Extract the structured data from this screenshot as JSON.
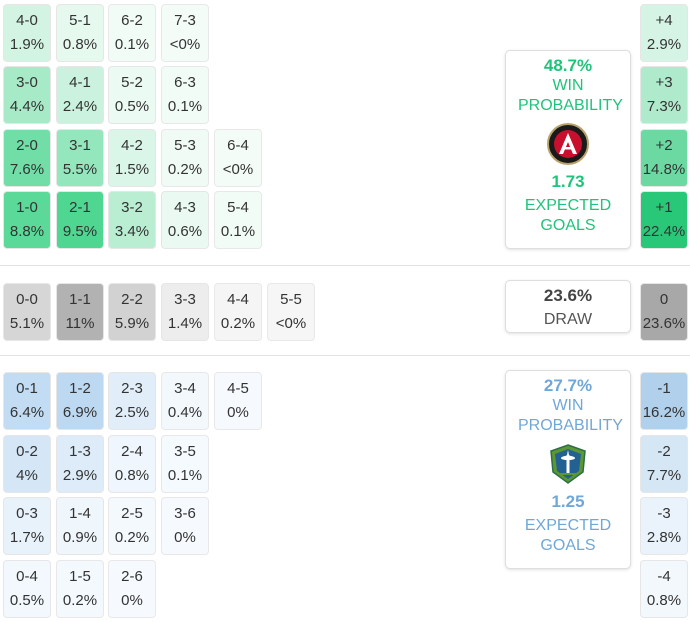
{
  "colors": {
    "home_accent": "#1fc47a",
    "away_accent": "#6fa8d8",
    "draw_text": "#444444"
  },
  "home": {
    "win_prob": "48.7%",
    "win_label": "WIN PROBABILITY",
    "logo": "atlanta-united-crest-icon",
    "xg": "1.73",
    "xg_label": "EXPECTED GOALS"
  },
  "draw": {
    "prob": "23.6%",
    "label": "DRAW"
  },
  "away": {
    "win_prob": "27.7%",
    "win_label": "WIN PROBABILITY",
    "logo": "seattle-sounders-crest-icon",
    "xg": "1.25",
    "xg_label": "EXPECTED GOALS"
  },
  "home_scores": [
    [
      {
        "s": "4-0",
        "p": "1.9%"
      },
      {
        "s": "5-1",
        "p": "0.8%"
      },
      {
        "s": "6-2",
        "p": "0.1%"
      },
      {
        "s": "7-3",
        "p": "<0%"
      }
    ],
    [
      {
        "s": "3-0",
        "p": "4.4%"
      },
      {
        "s": "4-1",
        "p": "2.4%"
      },
      {
        "s": "5-2",
        "p": "0.5%"
      },
      {
        "s": "6-3",
        "p": "0.1%"
      }
    ],
    [
      {
        "s": "2-0",
        "p": "7.6%"
      },
      {
        "s": "3-1",
        "p": "5.5%"
      },
      {
        "s": "4-2",
        "p": "1.5%"
      },
      {
        "s": "5-3",
        "p": "0.2%"
      },
      {
        "s": "6-4",
        "p": "<0%"
      }
    ],
    [
      {
        "s": "1-0",
        "p": "8.8%"
      },
      {
        "s": "2-1",
        "p": "9.5%"
      },
      {
        "s": "3-2",
        "p": "3.4%"
      },
      {
        "s": "4-3",
        "p": "0.6%"
      },
      {
        "s": "5-4",
        "p": "0.1%"
      }
    ]
  ],
  "draw_scores": [
    [
      {
        "s": "0-0",
        "p": "5.1%"
      },
      {
        "s": "1-1",
        "p": "11%"
      },
      {
        "s": "2-2",
        "p": "5.9%"
      },
      {
        "s": "3-3",
        "p": "1.4%"
      },
      {
        "s": "4-4",
        "p": "0.2%"
      },
      {
        "s": "5-5",
        "p": "<0%"
      }
    ]
  ],
  "away_scores": [
    [
      {
        "s": "0-1",
        "p": "6.4%"
      },
      {
        "s": "1-2",
        "p": "6.9%"
      },
      {
        "s": "2-3",
        "p": "2.5%"
      },
      {
        "s": "3-4",
        "p": "0.4%"
      },
      {
        "s": "4-5",
        "p": "0%"
      }
    ],
    [
      {
        "s": "0-2",
        "p": "4%"
      },
      {
        "s": "1-3",
        "p": "2.9%"
      },
      {
        "s": "2-4",
        "p": "0.8%"
      },
      {
        "s": "3-5",
        "p": "0.1%"
      }
    ],
    [
      {
        "s": "0-3",
        "p": "1.7%"
      },
      {
        "s": "1-4",
        "p": "0.9%"
      },
      {
        "s": "2-5",
        "p": "0.2%"
      },
      {
        "s": "3-6",
        "p": "0%"
      }
    ],
    [
      {
        "s": "0-4",
        "p": "0.5%"
      },
      {
        "s": "1-5",
        "p": "0.2%"
      },
      {
        "s": "2-6",
        "p": "0%"
      }
    ]
  ],
  "home_margins": [
    {
      "m": "+4",
      "p": "2.9%"
    },
    {
      "m": "+3",
      "p": "7.3%"
    },
    {
      "m": "+2",
      "p": "14.8%"
    },
    {
      "m": "+1",
      "p": "22.4%"
    }
  ],
  "draw_margins": [
    {
      "m": "0",
      "p": "23.6%"
    }
  ],
  "away_margins": [
    {
      "m": "-1",
      "p": "16.2%"
    },
    {
      "m": "-2",
      "p": "7.7%"
    },
    {
      "m": "-3",
      "p": "2.8%"
    },
    {
      "m": "-4",
      "p": "0.8%"
    }
  ]
}
